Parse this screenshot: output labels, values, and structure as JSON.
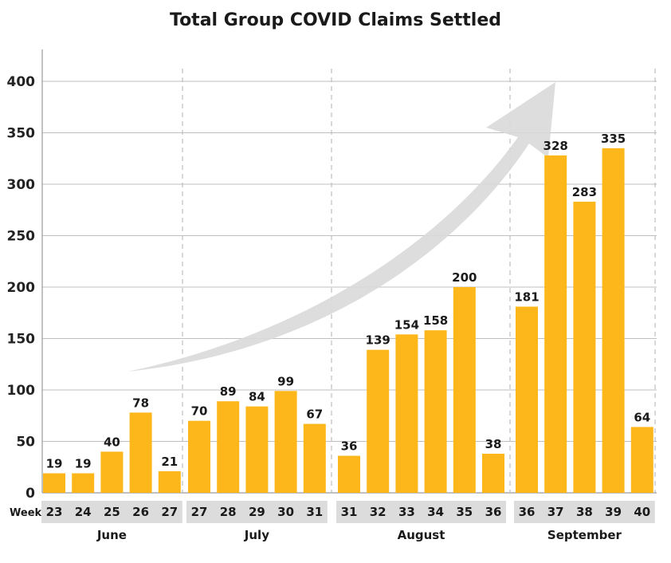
{
  "chart_data": {
    "type": "bar",
    "title": "Total Group COVID Claims Settled",
    "x_axis_word": "Week",
    "xlabel": "",
    "ylabel": "",
    "ylim": [
      0,
      420
    ],
    "yticks": [
      0,
      50,
      100,
      150,
      200,
      250,
      300,
      350,
      400
    ],
    "grid": true,
    "trend_arrow": true,
    "bar_color": "#FDB71A",
    "week_band_color": "#DCDCDC",
    "arrow_color": "#D9D9D9",
    "grid_color": "#BFBFBF",
    "groups": [
      {
        "month": "June",
        "weeks": [
          "23",
          "24",
          "25",
          "26",
          "27"
        ],
        "values": [
          19,
          19,
          40,
          78,
          21
        ]
      },
      {
        "month": "July",
        "weeks": [
          "27",
          "28",
          "29",
          "30",
          "31"
        ],
        "values": [
          70,
          89,
          84,
          99,
          67
        ]
      },
      {
        "month": "August",
        "weeks": [
          "31",
          "32",
          "33",
          "34",
          "35",
          "36"
        ],
        "values": [
          36,
          139,
          154,
          158,
          200,
          38
        ]
      },
      {
        "month": "September",
        "weeks": [
          "36",
          "37",
          "38",
          "39",
          "40"
        ],
        "values": [
          181,
          328,
          283,
          335,
          64
        ]
      }
    ]
  }
}
